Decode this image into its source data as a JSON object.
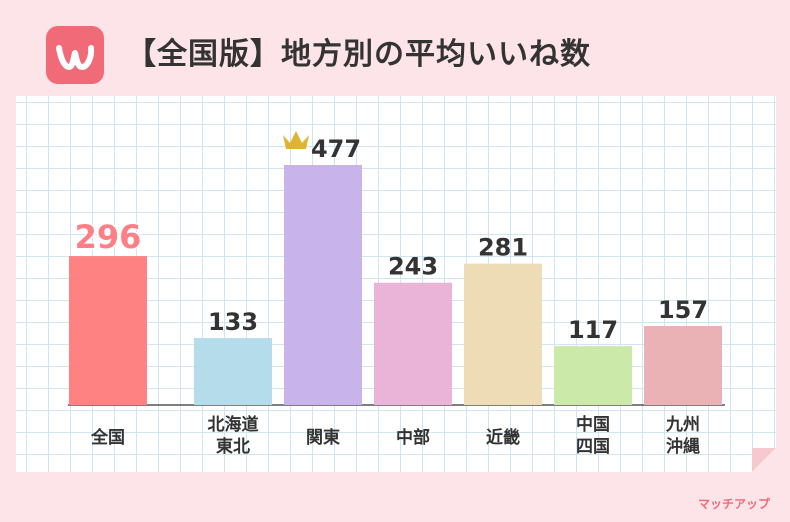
{
  "header": {
    "title": "【全国版】地方別の平均いいね数",
    "logo_icon": "app-logo-w-icon",
    "logo_color": "#f06a78"
  },
  "brand": {
    "name": "マッチアップ"
  },
  "chart_data": {
    "type": "bar",
    "title": "【全国版】地方別の平均いいね数",
    "xlabel": "",
    "ylabel": "",
    "ylim": [
      0,
      500
    ],
    "grid": true,
    "categories": [
      [
        "全国"
      ],
      [
        "北海道",
        "東北"
      ],
      [
        "関東"
      ],
      [
        "中部"
      ],
      [
        "近畿"
      ],
      [
        "中国",
        "四国"
      ],
      [
        "九州",
        "沖縄"
      ]
    ],
    "values": [
      296,
      133,
      477,
      243,
      281,
      117,
      157
    ],
    "colors": [
      "#ff8282",
      "#b4dcea",
      "#c8b4ea",
      "#eab4d9",
      "#eedcb6",
      "#cbeaaa",
      "#eab2b4"
    ],
    "highlight": {
      "index": 0,
      "label_color": "#ff7f87"
    },
    "crown": {
      "index": 2,
      "icon": "crown-icon",
      "color": "#e0b52e"
    }
  }
}
